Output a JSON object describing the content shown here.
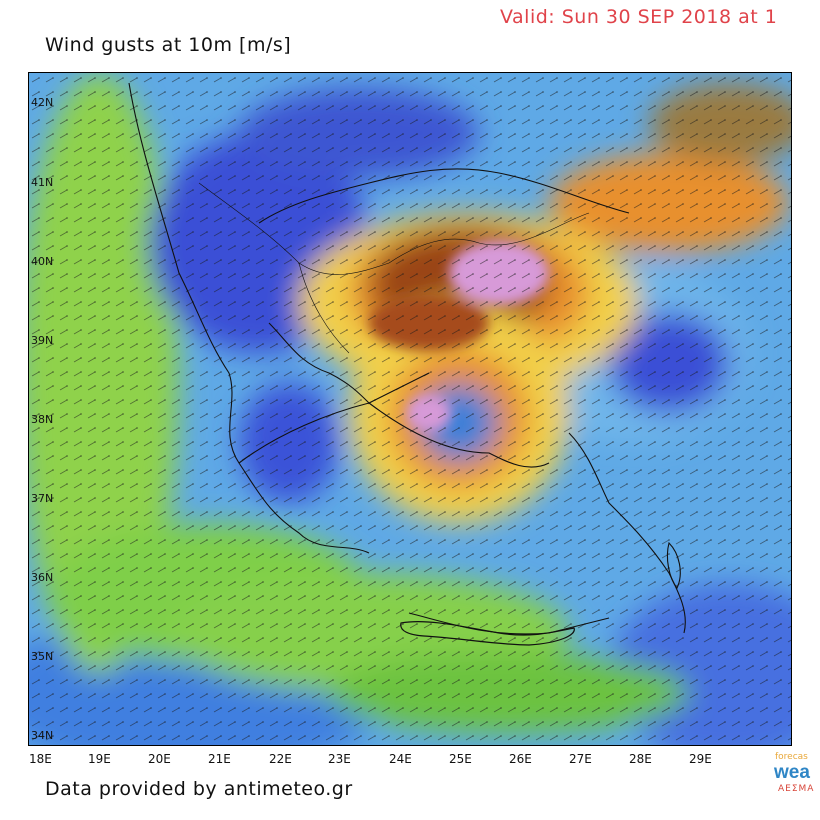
{
  "header": {
    "title": "Wind gusts at 10m [m/s]",
    "valid": "Valid: Sun 30 SEP 2018 at 1"
  },
  "footer": {
    "credit": "Data provided by antimeteo.gr"
  },
  "brand": {
    "line1": "forecas",
    "line2": "wea",
    "line3": "ΑΕΣΜΑ"
  },
  "axes": {
    "lat_labels": [
      "42N",
      "41N",
      "40N",
      "39N",
      "38N",
      "37N",
      "36N",
      "35N",
      "34N"
    ],
    "lon_labels": [
      "18E",
      "19E",
      "20E",
      "21E",
      "22E",
      "23E",
      "24E",
      "25E",
      "26E",
      "27E",
      "28E",
      "29E"
    ]
  },
  "colors": {
    "calm": "#3a4fd6",
    "light": "#5ec6e8",
    "moderate": "#9ad84a",
    "fresh": "#6cc240",
    "strong": "#f2d04a",
    "gale": "#e8902e",
    "storm": "#9a4418",
    "extreme": "#d79ad8"
  }
}
